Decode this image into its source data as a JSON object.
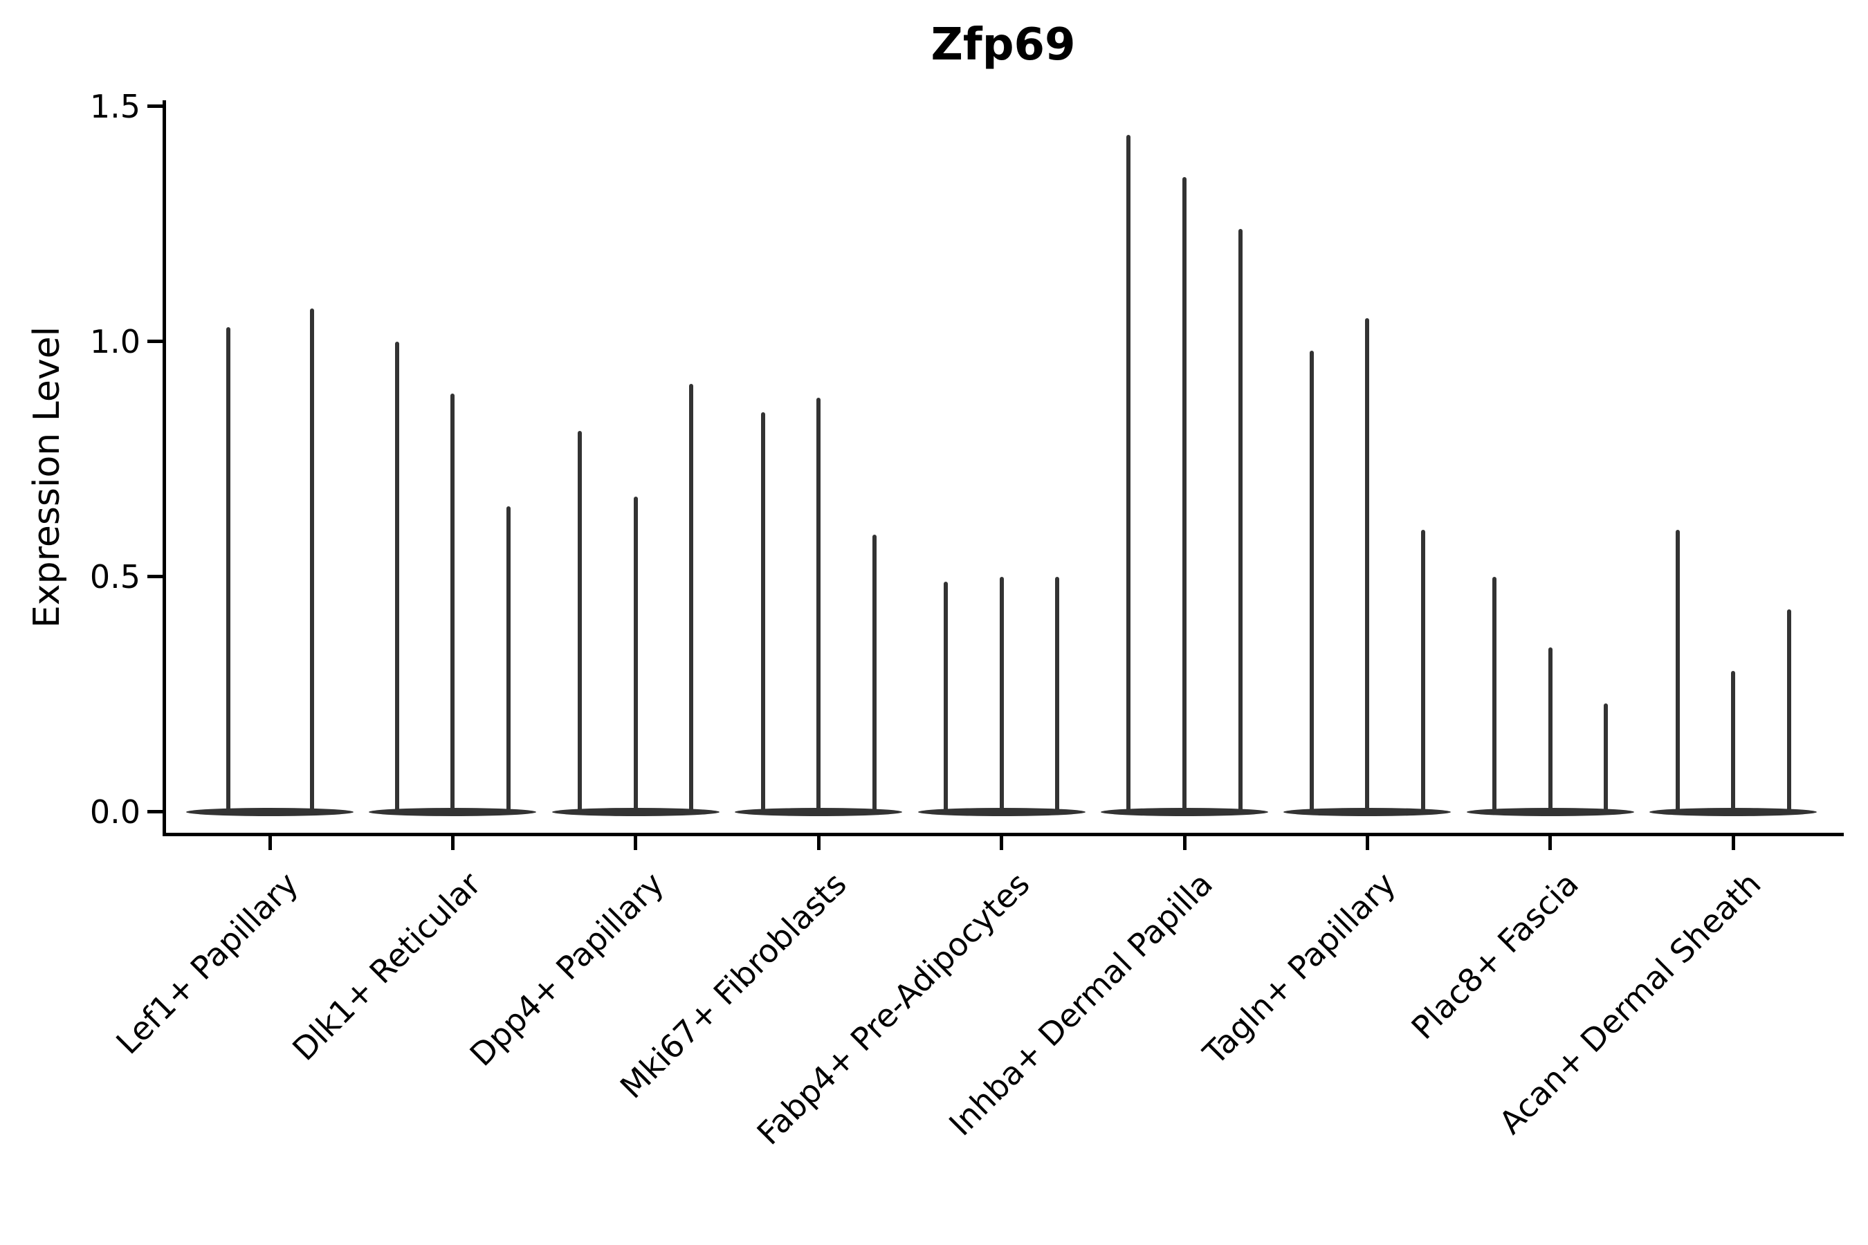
{
  "title": "Zfp69",
  "ylabel": "Expression Level",
  "chart_data": {
    "type": "violin",
    "title": "Zfp69",
    "xlabel": "",
    "ylabel": "Expression Level",
    "ylim": [
      0.0,
      1.5
    ],
    "yticks": [
      0.0,
      0.5,
      1.0,
      1.5
    ],
    "grid": false,
    "legend": false,
    "description": "Narrow spike-shaped violins; most density sits at expression 0 (wide flat base lens per category) with thin spikes reaching each violin's maximum expression value. Two violins in the first category, three in every other category.",
    "categories": [
      "Lef1+ Papillary",
      "Dlk1+ Reticular",
      "Dpp4+ Papillary",
      "Mki67+ Fibroblasts",
      "Fabp4+ Pre-Adipocytes",
      "Inhba+ Dermal Papilla",
      "Tagln+ Papillary",
      "Plac8+ Fascia",
      "Acan+ Dermal Sheath"
    ],
    "groups": [
      {
        "label": "Lef1+ Papillary",
        "violin_max": [
          1.03,
          1.07
        ]
      },
      {
        "label": "Dlk1+ Reticular",
        "violin_max": [
          1.0,
          0.89,
          0.65
        ]
      },
      {
        "label": "Dpp4+ Papillary",
        "violin_max": [
          0.81,
          0.67,
          0.91
        ]
      },
      {
        "label": "Mki67+ Fibroblasts",
        "violin_max": [
          0.85,
          0.88,
          0.59
        ]
      },
      {
        "label": "Fabp4+ Pre-Adipocytes",
        "violin_max": [
          0.49,
          0.5,
          0.5
        ]
      },
      {
        "label": "Inhba+ Dermal Papilla",
        "violin_max": [
          1.44,
          1.35,
          1.24
        ]
      },
      {
        "label": "Tagln+ Papillary",
        "violin_max": [
          0.98,
          1.05,
          0.6
        ]
      },
      {
        "label": "Plac8+ Fascia",
        "violin_max": [
          0.5,
          0.35,
          0.23
        ]
      },
      {
        "label": "Acan+ Dermal Sheath",
        "violin_max": [
          0.6,
          0.3,
          0.43
        ]
      }
    ],
    "colors": {
      "violin": "#333333",
      "axis": "#000000",
      "text": "#000000",
      "background": "#ffffff"
    }
  }
}
